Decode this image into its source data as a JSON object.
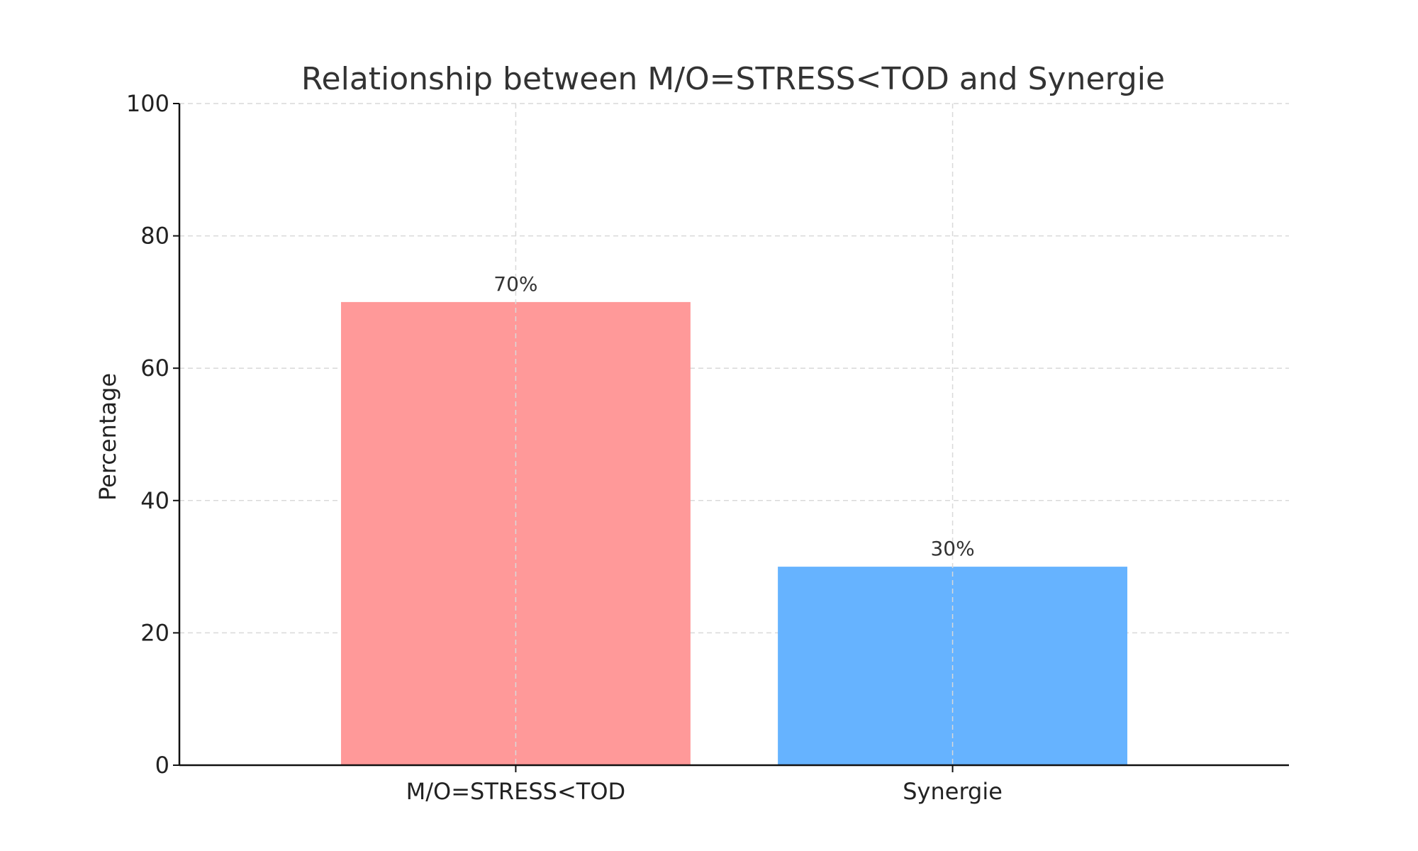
{
  "chart_data": {
    "type": "bar",
    "title": "Relationship between M/O=STRESS<TOD and Synergie",
    "xlabel": "",
    "ylabel": "Percentage",
    "categories": [
      "M/O=STRESS<TOD",
      "Synergie"
    ],
    "values": [
      70,
      30
    ],
    "data_labels": [
      "70%",
      "30%"
    ],
    "colors": [
      "#ff9999",
      "#66b3ff"
    ],
    "ylim": [
      0,
      100
    ],
    "yticks": [
      0,
      20,
      40,
      60,
      80,
      100
    ],
    "grid": true,
    "legend": "none"
  }
}
